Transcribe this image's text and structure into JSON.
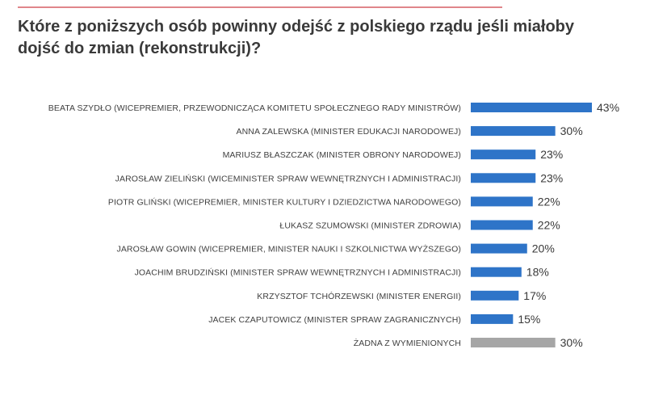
{
  "title_line1": "Które z poniższych osób powinny odejść z polskiego rządu jeśli miałoby",
  "title_line2": "dojść do zmian (rekonstrukcji)?",
  "colors": {
    "bar": "#2e74c8",
    "bar_none": "#a6a6a6",
    "rule": "#e0868a"
  },
  "chart_data": {
    "type": "bar",
    "orientation": "horizontal",
    "title": "Które z poniższych osób powinny odejść z polskiego rządu jeśli miałoby dojść do zmian (rekonstrukcji)?",
    "categories": [
      "BEATA SZYDŁO (WICEPREMIER, PRZEWODNICZĄCA KOMITETU SPOŁECZNEGO RADY MINISTRÓW)",
      "ANNA ZALEWSKA (MINISTER EDUKACJI NARODOWEJ)",
      "MARIUSZ BŁASZCZAK (MINISTER OBRONY NARODOWEJ)",
      "JAROSŁAW ZIELIŃSKI (WICEMINISTER SPRAW WEWNĘTRZNYCH I ADMINISTRACJI)",
      "PIOTR GLIŃSKI (WICEPREMIER, MINISTER KULTURY I DZIEDZICTWA NARODOWEGO)",
      "ŁUKASZ SZUMOWSKI (MINISTER ZDROWIA)",
      "JAROSŁAW GOWIN (WICEPREMIER, MINISTER NAUKI I SZKOLNICTWA WYŻSZEGO)",
      "JOACHIM BRUDZIŃSKI (MINISTER SPRAW WEWNĘTRZNYCH I ADMINISTRACJI)",
      "KRZYSZTOF TCHÓRZEWSKI (MINISTER ENERGII)",
      "JACEK CZAPUTOWICZ (MINISTER SPRAW ZAGRANICZNYCH)",
      "ŻADNA Z WYMIENIONYCH"
    ],
    "values": [
      43,
      30,
      23,
      23,
      22,
      22,
      20,
      18,
      17,
      15,
      30
    ],
    "value_labels": [
      "43%",
      "30%",
      "23%",
      "23%",
      "22%",
      "22%",
      "20%",
      "18%",
      "17%",
      "15%",
      "30%"
    ],
    "highlight_last_gray": true,
    "xlim": [
      0,
      43
    ],
    "grid": false,
    "legend": "none"
  }
}
